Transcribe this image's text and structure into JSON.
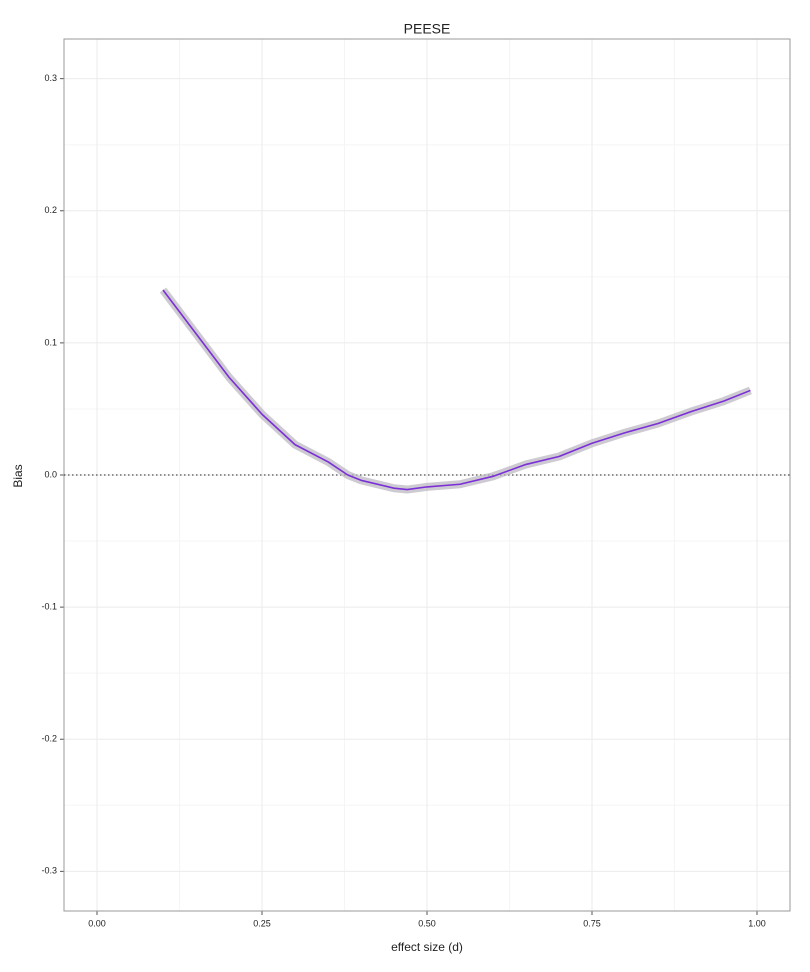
{
  "chart_data": {
    "type": "line",
    "title": "PEESE",
    "xlabel": "effect size (d)",
    "ylabel": "Bias",
    "x": [
      0.1,
      0.15,
      0.2,
      0.25,
      0.3,
      0.35,
      0.38,
      0.4,
      0.45,
      0.47,
      0.5,
      0.55,
      0.6,
      0.65,
      0.7,
      0.75,
      0.8,
      0.85,
      0.9,
      0.95,
      0.99
    ],
    "series": [
      {
        "color": "#7b2fd6",
        "values": [
          0.14,
          0.107,
          0.074,
          0.046,
          0.023,
          0.01,
          0.0,
          -0.004,
          -0.01,
          -0.011,
          -0.009,
          -0.007,
          -0.001,
          0.008,
          0.014,
          0.024,
          0.032,
          0.039,
          0.048,
          0.056,
          0.064
        ]
      }
    ],
    "xlim": [
      -0.05,
      1.05
    ],
    "ylim": [
      -0.33,
      0.33
    ],
    "xticks": [
      {
        "value": 0,
        "label": "0.00"
      },
      {
        "value": 0.25,
        "label": "0.25"
      },
      {
        "value": 0.5,
        "label": "0.50"
      },
      {
        "value": 0.75,
        "label": "0.75"
      },
      {
        "value": 1,
        "label": "1.00"
      }
    ],
    "yticks": [
      -0.3,
      -0.2,
      -0.1,
      {
        "value": 0,
        "label": "0.0"
      },
      0.1,
      0.2,
      0.3
    ],
    "hline": 0,
    "grid": true
  }
}
